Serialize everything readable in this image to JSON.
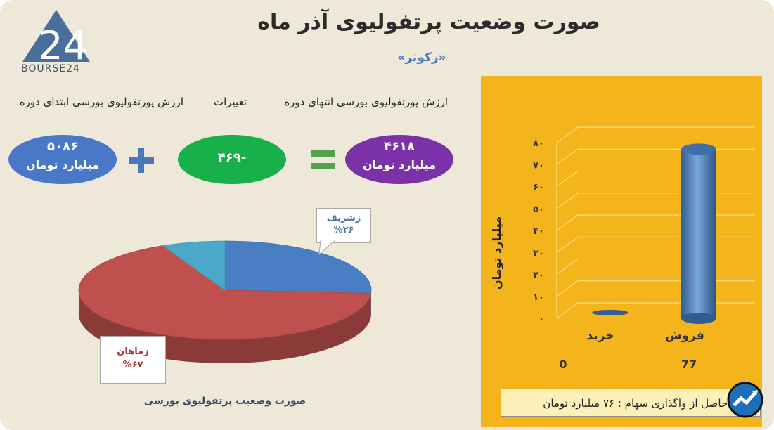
{
  "header": {
    "title": "صورت وضعیت پرتفولیوی آذر ماه",
    "subtitle": "«زکوثر»"
  },
  "logo": {
    "text": "BOURSE24",
    "mark_text": "24",
    "icon": "triangle-logo"
  },
  "summary": {
    "labels": {
      "start": "ارزش پورتفولیوی بورسی ابتدای دوره",
      "change": "تغییرات",
      "end": "ارزش پورتفولیوی بورسی انتهای دوره"
    },
    "start_value": "۵۰۸۶",
    "start_unit": "میلیارد تومان",
    "change_value": "-۴۶۹",
    "end_value": "۴۶۱۸",
    "end_unit": "میلیارد تومان",
    "colors": {
      "start": "#4a78c8",
      "change": "#18b04a",
      "end": "#7b32a8"
    },
    "operators": {
      "plus": "plus-icon",
      "equals": "equals-icon"
    }
  },
  "chart_data": [
    {
      "type": "pie",
      "title": "صورت وضعیت پرتفولیوی بورسی",
      "slices": [
        {
          "name": "زشریف",
          "value": 26,
          "label_value": "%۲۶",
          "color": "#4a7ec4"
        },
        {
          "name": "زماهان",
          "value": 67,
          "label_value": "%۶۷",
          "color": "#c0504d"
        },
        {
          "name": "",
          "value": 7,
          "color": "#4aa8c8"
        }
      ]
    },
    {
      "type": "bar",
      "categories": [
        "فروش",
        "خرید"
      ],
      "values": [
        77,
        0
      ],
      "value_labels": [
        "77",
        "0"
      ],
      "ylabel": "میلیارد تومان",
      "ylim": [
        0,
        80
      ],
      "yticks": [
        "۰",
        "۱۰",
        "۲۰",
        "۳۰",
        "۴۰",
        "۵۰",
        "۶۰",
        "۷۰",
        "۸۰"
      ],
      "grid": true,
      "bar_color": "#4f7fbf",
      "background": "#f4b41c"
    }
  ],
  "footer_note": "سود حاصل از واگذاری سهام : ۷۶ میلیارد تومان",
  "badge": {
    "icon": "chart-trend-icon"
  }
}
